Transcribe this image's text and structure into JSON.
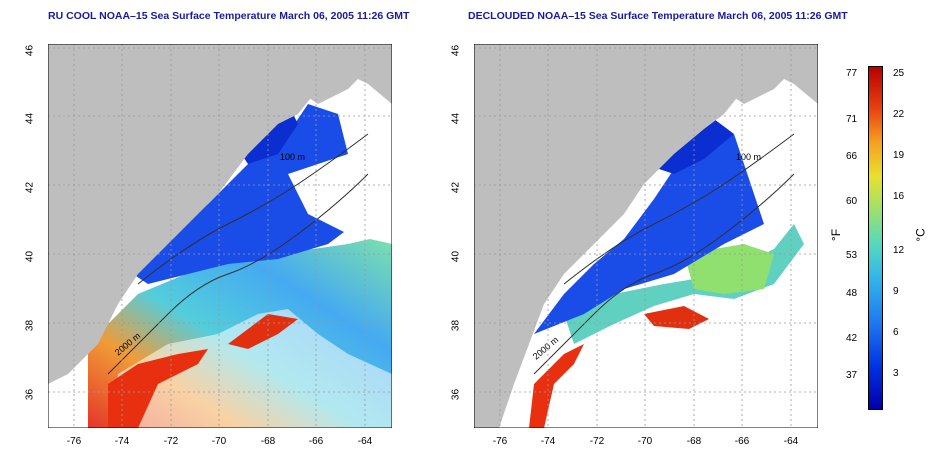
{
  "panels": [
    {
      "title": "RU COOL NOAA–15 Sea Surface Temperature March 06, 2005 11:26 GMT",
      "contour_labels": [
        "100 m",
        "2000 m"
      ]
    },
    {
      "title": "DECLOUDED NOAA–15 Sea Surface Temperature March 06, 2005 11:26 GMT",
      "contour_labels": [
        "100 m",
        "2000 m"
      ]
    }
  ],
  "axes": {
    "x_ticks": [
      "-76",
      "-74",
      "-72",
      "-70",
      "-68",
      "-66",
      "-64"
    ],
    "y_ticks": [
      "36",
      "38",
      "40",
      "42",
      "44",
      "46"
    ]
  },
  "colorbar": {
    "fahrenheit_ticks": [
      "77",
      "71",
      "66",
      "60",
      "53",
      "48",
      "42",
      "37"
    ],
    "celsius_ticks": [
      "25",
      "22",
      "19",
      "16",
      "12",
      "9",
      "6",
      "3"
    ],
    "unit_f": "°F",
    "unit_c": "°C"
  }
}
